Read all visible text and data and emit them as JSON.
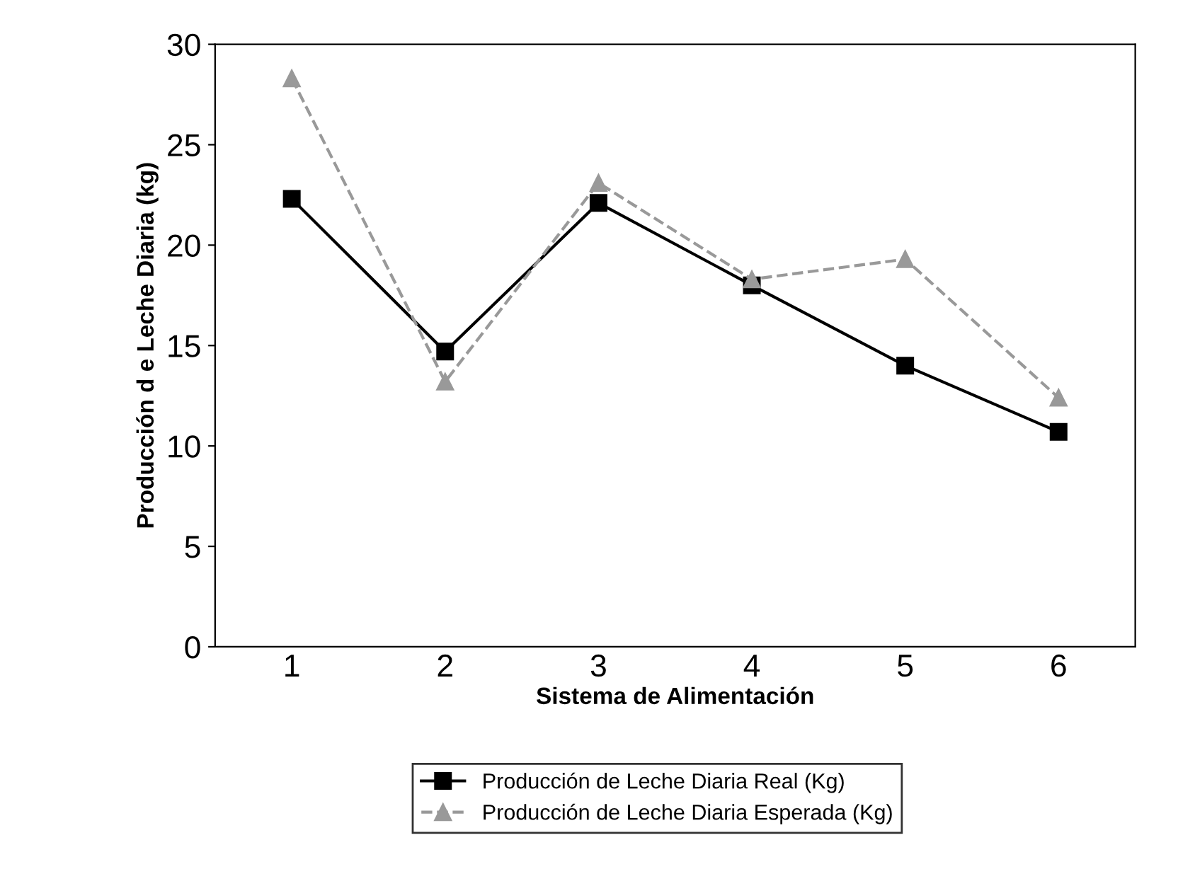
{
  "chart_data": {
    "type": "line",
    "xlabel": "Sistema de Alimentación",
    "ylabel": "Producción d e Leche Diaria (kg)",
    "categories": [
      "1",
      "2",
      "3",
      "4",
      "5",
      "6"
    ],
    "series": [
      {
        "name": "Producción de Leche Diaria Real (Kg)",
        "color": "#000000",
        "values": [
          22.3,
          14.7,
          22.1,
          18.0,
          14.0,
          10.7
        ],
        "marker": "square",
        "line_style": "solid"
      },
      {
        "name": "Producción de Leche Diaria Esperada (Kg)",
        "color": "#999999",
        "values": [
          28.3,
          13.2,
          23.1,
          18.3,
          19.3,
          12.4
        ],
        "marker": "triangle",
        "line_style": "dashed"
      }
    ],
    "ylim": [
      0,
      30
    ],
    "yticks": [
      0,
      5,
      10,
      15,
      20,
      25,
      30
    ],
    "grid": false,
    "legend": "bottom"
  }
}
